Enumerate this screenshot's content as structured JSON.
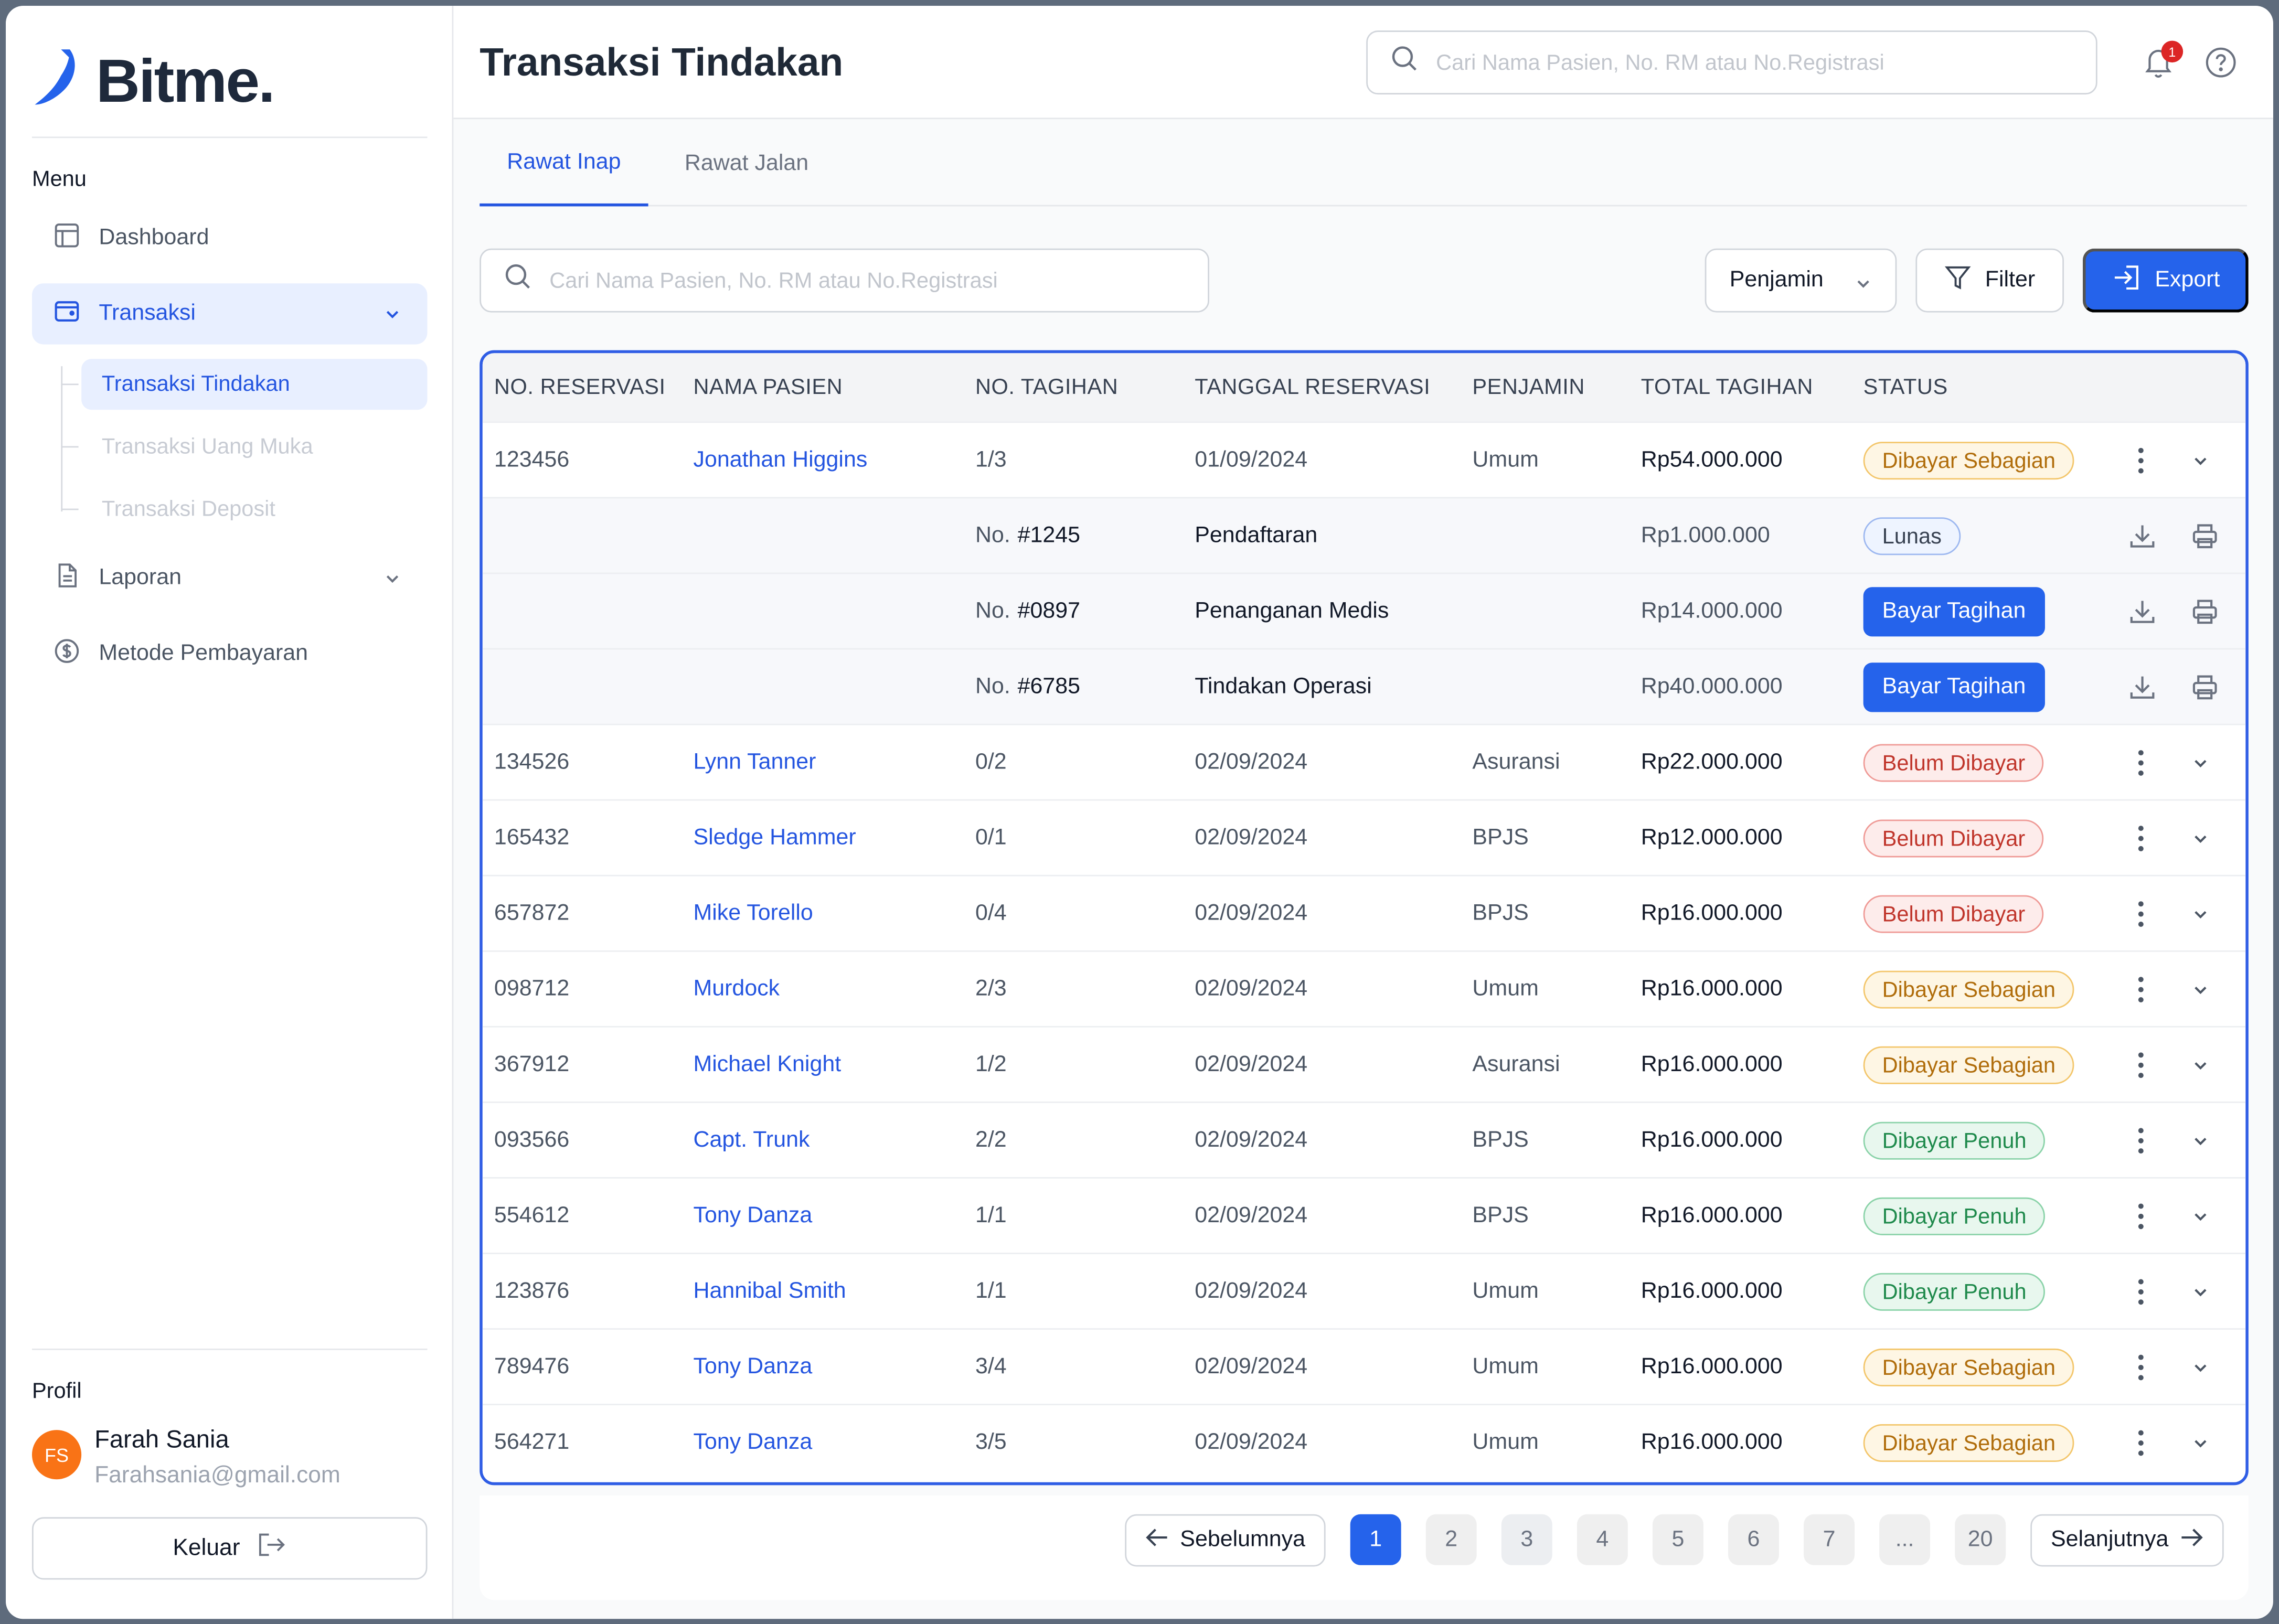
{
  "app": {
    "name": "Bitme."
  },
  "sidebar": {
    "menu_label": "Menu",
    "items": [
      {
        "label": "Dashboard"
      },
      {
        "label": "Transaksi"
      },
      {
        "label": "Laporan"
      },
      {
        "label": "Metode Pembayaran"
      }
    ],
    "subitems": [
      {
        "label": "Transaksi Tindakan"
      },
      {
        "label": "Transaksi Uang Muka"
      },
      {
        "label": "Transaksi Deposit"
      }
    ],
    "profile": {
      "label": "Profil",
      "initials": "FS",
      "name": "Farah Sania",
      "email": "Farahsania@gmail.com",
      "logout_label": "Keluar"
    }
  },
  "header": {
    "title": "Transaksi Tindakan",
    "search_placeholder": "Cari Nama Pasien, No. RM atau No.Registrasi",
    "notification_count": "1"
  },
  "tabs": [
    {
      "label": "Rawat Inap"
    },
    {
      "label": "Rawat Jalan"
    }
  ],
  "toolbar": {
    "search_placeholder": "Cari Nama Pasien, No. RM atau No.Registrasi",
    "penjamin_label": "Penjamin",
    "filter_label": "Filter",
    "export_label": "Export"
  },
  "table": {
    "columns": [
      "NO. RESERVASI",
      "NAMA PASIEN",
      "NO. TAGIHAN",
      "TANGGAL RESERVASI",
      "PENJAMIN",
      "TOTAL TAGIHAN",
      "STATUS"
    ],
    "rows": [
      {
        "reservasi": "123456",
        "nama": "Jonathan Higgins",
        "tagihan": "1/3",
        "tanggal": "01/09/2024",
        "penjamin": "Umum",
        "total": "Rp54.000.000",
        "status": "Dibayar Sebagian"
      },
      {
        "reservasi": "134526",
        "nama": "Lynn Tanner",
        "tagihan": "0/2",
        "tanggal": "02/09/2024",
        "penjamin": "Asuransi",
        "total": "Rp22.000.000",
        "status": "Belum Dibayar"
      },
      {
        "reservasi": "165432",
        "nama": "Sledge Hammer",
        "tagihan": "0/1",
        "tanggal": "02/09/2024",
        "penjamin": "BPJS",
        "total": "Rp12.000.000",
        "status": "Belum Dibayar"
      },
      {
        "reservasi": "657872",
        "nama": "Mike Torello",
        "tagihan": "0/4",
        "tanggal": "02/09/2024",
        "penjamin": "BPJS",
        "total": "Rp16.000.000",
        "status": "Belum Dibayar"
      },
      {
        "reservasi": "098712",
        "nama": "Murdock",
        "tagihan": "2/3",
        "tanggal": "02/09/2024",
        "penjamin": "Umum",
        "total": "Rp16.000.000",
        "status": "Dibayar Sebagian"
      },
      {
        "reservasi": "367912",
        "nama": "Michael Knight",
        "tagihan": "1/2",
        "tanggal": "02/09/2024",
        "penjamin": "Asuransi",
        "total": "Rp16.000.000",
        "status": "Dibayar Sebagian"
      },
      {
        "reservasi": "093566",
        "nama": "Capt. Trunk",
        "tagihan": "2/2",
        "tanggal": "02/09/2024",
        "penjamin": "BPJS",
        "total": "Rp16.000.000",
        "status": "Dibayar Penuh"
      },
      {
        "reservasi": "554612",
        "nama": "Tony Danza",
        "tagihan": "1/1",
        "tanggal": "02/09/2024",
        "penjamin": "BPJS",
        "total": "Rp16.000.000",
        "status": "Dibayar Penuh"
      },
      {
        "reservasi": "123876",
        "nama": "Hannibal Smith",
        "tagihan": "1/1",
        "tanggal": "02/09/2024",
        "penjamin": "Umum",
        "total": "Rp16.000.000",
        "status": "Dibayar Penuh"
      },
      {
        "reservasi": "789476",
        "nama": "Tony Danza",
        "tagihan": "3/4",
        "tanggal": "02/09/2024",
        "penjamin": "Umum",
        "total": "Rp16.000.000",
        "status": "Dibayar Sebagian"
      },
      {
        "reservasi": "564271",
        "nama": "Tony Danza",
        "tagihan": "3/5",
        "tanggal": "02/09/2024",
        "penjamin": "Umum",
        "total": "Rp16.000.000",
        "status": "Dibayar Sebagian"
      }
    ],
    "expanded": {
      "no_prefix": "No.",
      "bills": [
        {
          "no": "#1245",
          "desc": "Pendaftaran",
          "amount": "Rp1.000.000",
          "status": "Lunas"
        },
        {
          "no": "#0897",
          "desc": "Penanganan Medis",
          "amount": "Rp14.000.000",
          "action": "Bayar Tagihan"
        },
        {
          "no": "#6785",
          "desc": "Tindakan Operasi",
          "amount": "Rp40.000.000",
          "action": "Bayar Tagihan"
        }
      ]
    }
  },
  "pagination": {
    "prev_label": "Sebelumnya",
    "next_label": "Selanjutnya",
    "pages": [
      "1",
      "2",
      "3",
      "4",
      "5",
      "6",
      "7",
      "...",
      "20"
    ],
    "current": "1"
  },
  "colors": {
    "accent": "#2563eb",
    "warning": "#b06d0b",
    "danger": "#c0352b",
    "success": "#1f8a4c"
  }
}
